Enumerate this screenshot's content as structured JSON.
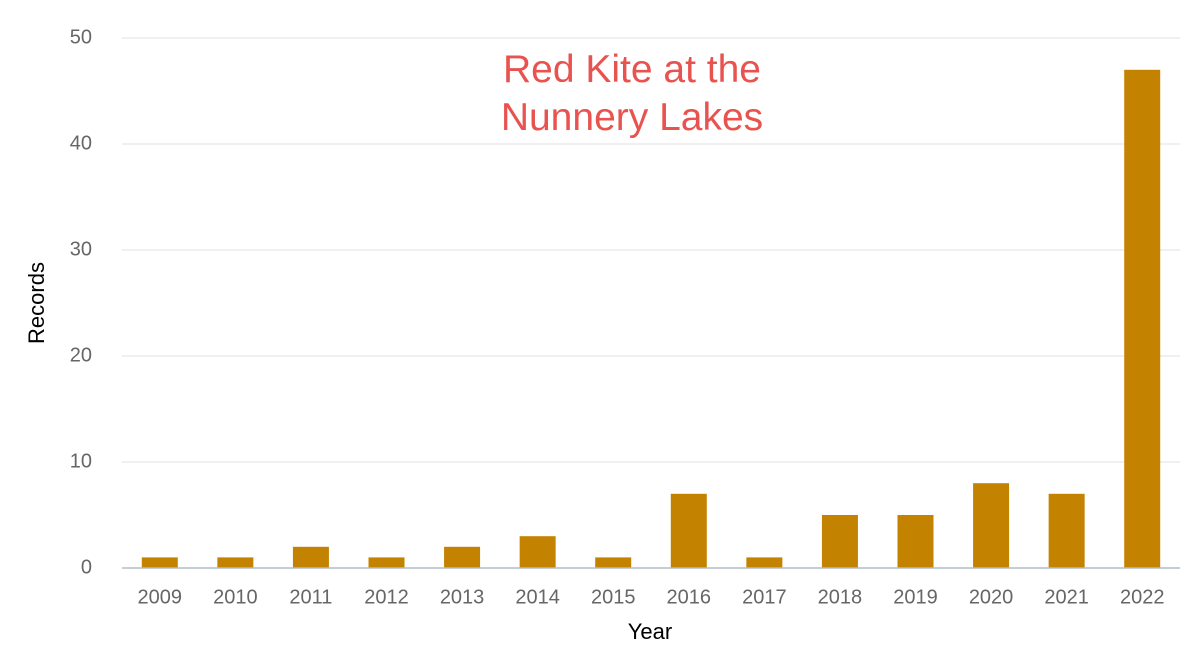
{
  "chart_data": {
    "type": "bar",
    "title": "Red Kite at the Nunnery Lakes",
    "x_label": "Year",
    "y_label": "Records",
    "categories": [
      "2009",
      "2010",
      "2011",
      "2012",
      "2013",
      "2014",
      "2015",
      "2016",
      "2017",
      "2018",
      "2019",
      "2020",
      "2021",
      "2022"
    ],
    "values": [
      1,
      1,
      2,
      1,
      2,
      3,
      1,
      7,
      1,
      5,
      5,
      8,
      7,
      47
    ],
    "color": "#c38200",
    "ylim": [
      0,
      50
    ],
    "yticks": [
      0,
      10,
      20,
      30,
      40,
      50
    ],
    "grid": true
  }
}
